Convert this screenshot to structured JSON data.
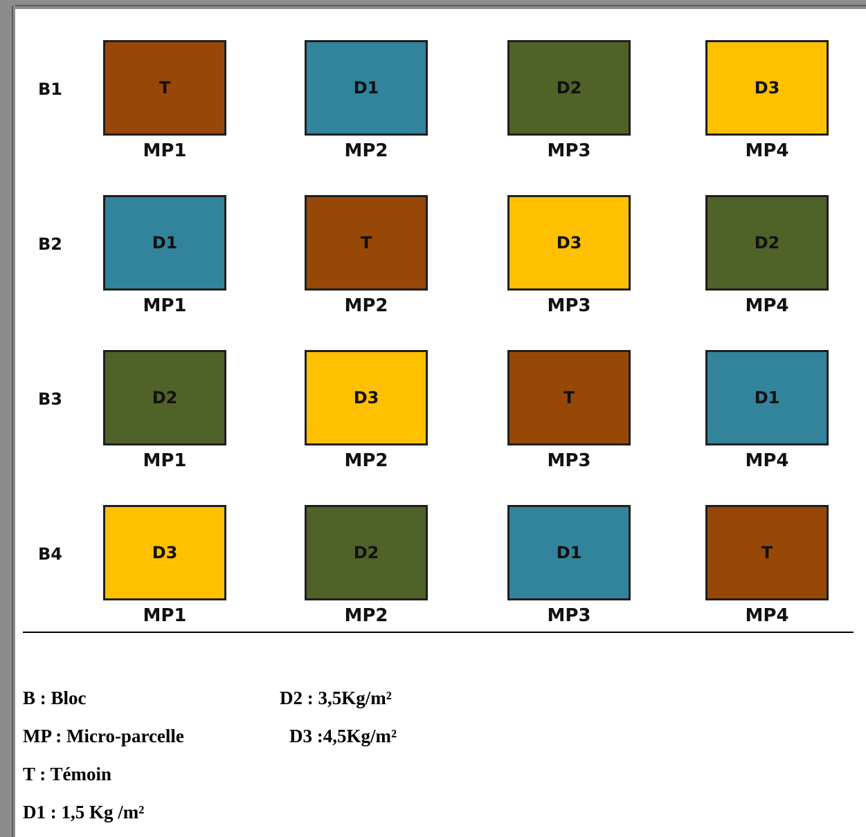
{
  "colors": {
    "T": "#984806",
    "D1": "#31849B",
    "D2": "#4F6228",
    "D3": "#FFC000"
  },
  "blocks": [
    {
      "label": "B1",
      "plots": [
        {
          "treatment": "T",
          "mp": "MP1"
        },
        {
          "treatment": "D1",
          "mp": "MP2"
        },
        {
          "treatment": "D2",
          "mp": "MP3"
        },
        {
          "treatment": "D3",
          "mp": "MP4"
        }
      ]
    },
    {
      "label": "B2",
      "plots": [
        {
          "treatment": "D1",
          "mp": "MP1"
        },
        {
          "treatment": "T",
          "mp": "MP2"
        },
        {
          "treatment": "D3",
          "mp": "MP3"
        },
        {
          "treatment": "D2",
          "mp": "MP4"
        }
      ]
    },
    {
      "label": "B3",
      "plots": [
        {
          "treatment": "D2",
          "mp": "MP1"
        },
        {
          "treatment": "D3",
          "mp": "MP2"
        },
        {
          "treatment": "T",
          "mp": "MP3"
        },
        {
          "treatment": "D1",
          "mp": "MP4"
        }
      ]
    },
    {
      "label": "B4",
      "plots": [
        {
          "treatment": "D3",
          "mp": "MP1"
        },
        {
          "treatment": "D2",
          "mp": "MP2"
        },
        {
          "treatment": "D1",
          "mp": "MP3"
        },
        {
          "treatment": "T",
          "mp": "MP4"
        }
      ]
    }
  ],
  "legend": {
    "b": "B : Bloc",
    "mp": "MP : Micro-parcelle",
    "t": "T : Témoin",
    "d1": "D1 : 1,5 Kg /m²",
    "d2": "D2 : 3,5Kg/m²",
    "d3": "D3 :4,5Kg/m²"
  }
}
